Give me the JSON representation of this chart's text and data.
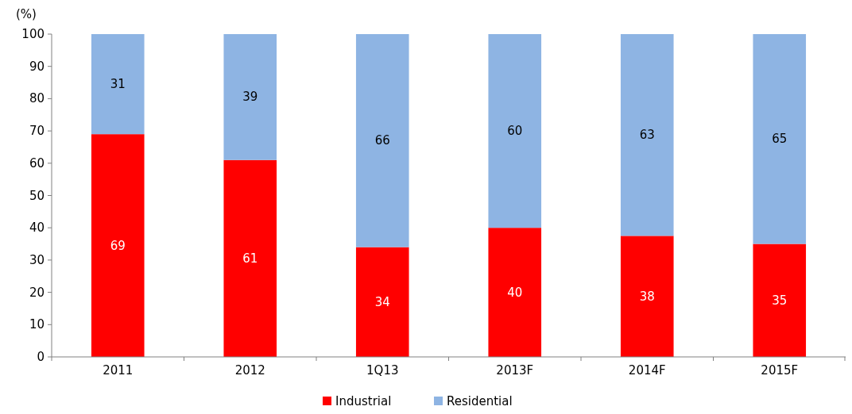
{
  "chart_data": {
    "type": "bar",
    "stacked": true,
    "ylabel": "(%)",
    "categories": [
      "2011",
      "2012",
      "1Q13",
      "2013F",
      "2014F",
      "2015F"
    ],
    "series": [
      {
        "name": "Industrial",
        "color": "#ff0000",
        "values": [
          69,
          61,
          34,
          40,
          37.5,
          35
        ],
        "value_labels": [
          "69",
          "61",
          "34",
          "40",
          "38",
          "35"
        ]
      },
      {
        "name": "Residential",
        "color": "#8eb4e3",
        "values": [
          31,
          39,
          66,
          60,
          62.5,
          65
        ],
        "value_labels": [
          "31",
          "39",
          "66",
          "60",
          "63",
          "65"
        ]
      }
    ],
    "ylim": [
      0,
      100
    ],
    "yticks": [
      0,
      10,
      20,
      30,
      40,
      50,
      60,
      70,
      80,
      90,
      100
    ],
    "legend": "bottom",
    "grid": false
  }
}
